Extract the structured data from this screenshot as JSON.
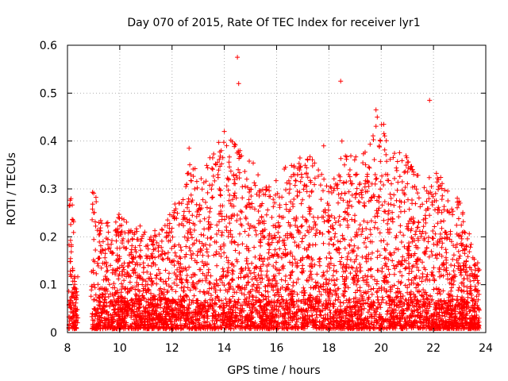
{
  "chart_data": {
    "type": "scatter",
    "title": "Day 070 of 2015, Rate Of TEC Index for receiver lyr1",
    "xlabel": "GPS time / hours",
    "ylabel": "ROTI / TECUs",
    "xlim": [
      8,
      24
    ],
    "ylim": [
      0,
      0.6
    ],
    "xticks": [
      "8",
      "10",
      "12",
      "14",
      "16",
      "18",
      "20",
      "22",
      "24"
    ],
    "yticks": [
      "0",
      "0.1",
      "0.2",
      "0.3",
      "0.4",
      "0.5",
      "0.6"
    ],
    "grid": true,
    "marker": "+",
    "marker_color": "#ff0000",
    "data_extent_x": [
      8.05,
      23.75
    ],
    "data_gap_x": [
      8.4,
      8.9
    ],
    "envelope": [
      {
        "x": 8.1,
        "y": 0.29
      },
      {
        "x": 8.2,
        "y": 0.3
      },
      {
        "x": 8.3,
        "y": 0.1
      },
      {
        "x": 9.0,
        "y": 0.32
      },
      {
        "x": 9.3,
        "y": 0.24
      },
      {
        "x": 9.6,
        "y": 0.24
      },
      {
        "x": 10.0,
        "y": 0.25
      },
      {
        "x": 10.5,
        "y": 0.22
      },
      {
        "x": 11.0,
        "y": 0.23
      },
      {
        "x": 11.5,
        "y": 0.22
      },
      {
        "x": 12.0,
        "y": 0.26
      },
      {
        "x": 12.5,
        "y": 0.3
      },
      {
        "x": 12.7,
        "y": 0.39
      },
      {
        "x": 13.0,
        "y": 0.33
      },
      {
        "x": 13.5,
        "y": 0.37
      },
      {
        "x": 14.0,
        "y": 0.42
      },
      {
        "x": 14.5,
        "y": 0.4
      },
      {
        "x": 15.0,
        "y": 0.38
      },
      {
        "x": 15.5,
        "y": 0.3
      },
      {
        "x": 16.0,
        "y": 0.32
      },
      {
        "x": 16.5,
        "y": 0.36
      },
      {
        "x": 17.0,
        "y": 0.37
      },
      {
        "x": 17.5,
        "y": 0.39
      },
      {
        "x": 18.0,
        "y": 0.3
      },
      {
        "x": 18.5,
        "y": 0.38
      },
      {
        "x": 19.0,
        "y": 0.37
      },
      {
        "x": 19.5,
        "y": 0.4
      },
      {
        "x": 19.8,
        "y": 0.46
      },
      {
        "x": 20.2,
        "y": 0.42
      },
      {
        "x": 20.5,
        "y": 0.38
      },
      {
        "x": 21.0,
        "y": 0.37
      },
      {
        "x": 21.5,
        "y": 0.32
      },
      {
        "x": 22.0,
        "y": 0.36
      },
      {
        "x": 22.5,
        "y": 0.3
      },
      {
        "x": 23.0,
        "y": 0.28
      },
      {
        "x": 23.5,
        "y": 0.18
      },
      {
        "x": 23.75,
        "y": 0.16
      }
    ],
    "notable_points": [
      {
        "x": 8.15,
        "y": 0.18
      },
      {
        "x": 12.65,
        "y": 0.385
      },
      {
        "x": 14.5,
        "y": 0.575
      },
      {
        "x": 14.55,
        "y": 0.52
      },
      {
        "x": 14.0,
        "y": 0.42
      },
      {
        "x": 18.45,
        "y": 0.525
      },
      {
        "x": 18.5,
        "y": 0.4
      },
      {
        "x": 19.8,
        "y": 0.465
      },
      {
        "x": 19.85,
        "y": 0.45
      },
      {
        "x": 20.1,
        "y": 0.435
      },
      {
        "x": 21.85,
        "y": 0.485
      },
      {
        "x": 17.8,
        "y": 0.39
      }
    ]
  }
}
